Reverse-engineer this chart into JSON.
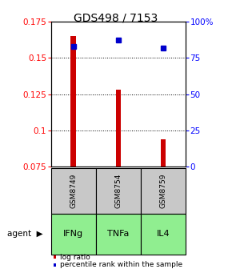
{
  "title": "GDS498 / 7153",
  "categories": [
    "IFNg",
    "TNFa",
    "IL4"
  ],
  "gsm_labels": [
    "GSM8749",
    "GSM8754",
    "GSM8759"
  ],
  "log_ratio": [
    0.165,
    0.128,
    0.094
  ],
  "percentile_rank": [
    83,
    87,
    82
  ],
  "ylim_left": [
    0.075,
    0.175
  ],
  "ylim_right": [
    0,
    100
  ],
  "yticks_left": [
    0.075,
    0.1,
    0.125,
    0.15,
    0.175
  ],
  "yticks_right": [
    0,
    25,
    50,
    75,
    100
  ],
  "bar_color": "#cc0000",
  "dot_color": "#0000cc",
  "box_color_gsm": "#c8c8c8",
  "box_color_agent": "#90ee90",
  "legend_log": "log ratio",
  "legend_pct": "percentile rank within the sample",
  "title_fontsize": 10,
  "tick_fontsize": 7.5,
  "bar_width": 0.12
}
